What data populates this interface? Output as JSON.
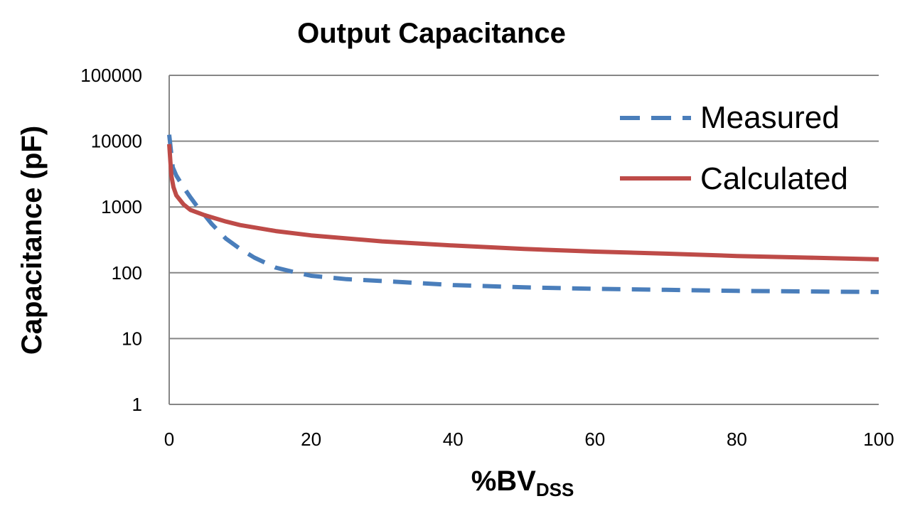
{
  "chart_data": {
    "type": "line",
    "title": "Output Capacitance",
    "xlabel": "%BV",
    "xlabel_subscript": "DSS",
    "ylabel": "Capacitance (pF)",
    "x_scale": "linear",
    "y_scale": "log",
    "xlim": [
      0,
      100
    ],
    "ylim": [
      1,
      100000
    ],
    "x_ticks": [
      "0",
      "20",
      "40",
      "60",
      "80",
      "100"
    ],
    "y_ticks": [
      "1",
      "10",
      "100",
      "1000",
      "10000",
      "100000"
    ],
    "grid": "horizontal",
    "legend_position": "top-right",
    "series": [
      {
        "name": "Measured",
        "color": "#4a7ebb",
        "style": "dashed",
        "x": [
          0,
          0.5,
          1,
          2,
          3,
          4,
          5,
          6,
          8,
          10,
          12,
          15,
          18,
          20,
          25,
          30,
          40,
          50,
          60,
          70,
          80,
          90,
          100
        ],
        "y": [
          12500,
          4000,
          3000,
          2000,
          1400,
          1000,
          750,
          550,
          330,
          230,
          170,
          120,
          100,
          90,
          80,
          75,
          65,
          60,
          57,
          55,
          53,
          52,
          51
        ]
      },
      {
        "name": "Calculated",
        "color": "#be4b48",
        "style": "solid",
        "x": [
          0,
          0.3,
          0.6,
          1,
          2,
          3,
          5,
          8,
          10,
          15,
          20,
          30,
          40,
          50,
          60,
          70,
          80,
          90,
          100
        ],
        "y": [
          9000,
          3000,
          2000,
          1500,
          1100,
          900,
          750,
          600,
          530,
          430,
          370,
          300,
          260,
          230,
          210,
          195,
          180,
          170,
          160
        ]
      }
    ]
  }
}
